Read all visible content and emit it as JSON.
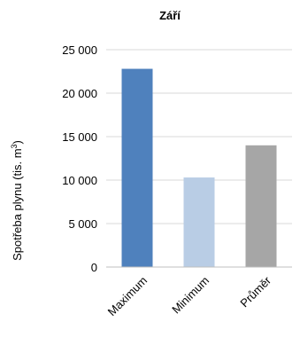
{
  "chart_data": {
    "type": "bar",
    "title": "Září",
    "ylabel": "Spotřeba plynu (tis. m",
    "ylabel_sup": "3",
    "ylabel_close": ")",
    "categories": [
      "Maximum",
      "Minimum",
      "Průměr"
    ],
    "values": [
      22800,
      10300,
      14000
    ],
    "colors": [
      "#4f81bd",
      "#b9cde5",
      "#a6a6a6"
    ],
    "ylim": [
      0,
      25000
    ],
    "yticks": [
      0,
      5000,
      10000,
      15000,
      20000,
      25000
    ],
    "ytick_labels": [
      "0",
      "5 000",
      "10 000",
      "15 000",
      "20 000",
      "25 000"
    ],
    "grid": true,
    "legend": "none"
  }
}
